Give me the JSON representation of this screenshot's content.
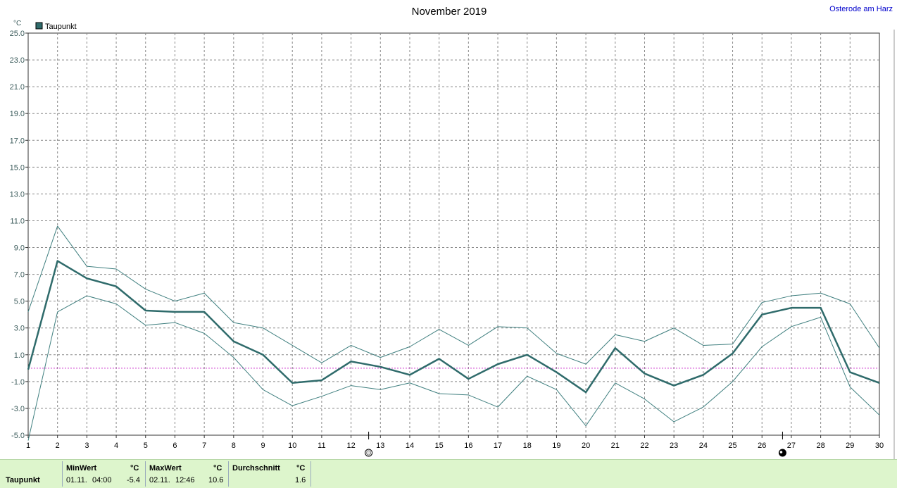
{
  "location": "Osterode am Harz",
  "chart_data": {
    "type": "line",
    "title": "November 2019",
    "ylabel": "°C",
    "ylim": [
      -5,
      25
    ],
    "yticks": [
      "25.0",
      "23.0",
      "21.0",
      "19.0",
      "17.0",
      "15.0",
      "13.0",
      "11.0",
      "9.0",
      "7.0",
      "5.0",
      "3.0",
      "1.0",
      "-1.0",
      "-3.0",
      "-5.0"
    ],
    "ytick_values": [
      25,
      23,
      21,
      19,
      17,
      15,
      13,
      11,
      9,
      7,
      5,
      3,
      1,
      -1,
      -3,
      -5
    ],
    "x": [
      1,
      2,
      3,
      4,
      5,
      6,
      7,
      8,
      9,
      10,
      11,
      12,
      13,
      14,
      15,
      16,
      17,
      18,
      19,
      20,
      21,
      22,
      23,
      24,
      25,
      26,
      27,
      28,
      29,
      30
    ],
    "xlim": [
      1,
      30
    ],
    "grid": true,
    "legend": {
      "position": "top-left",
      "entries": [
        "Taupunkt"
      ]
    },
    "series": [
      {
        "name": "Taupunkt",
        "role": "mean",
        "values": [
          -0.1,
          8.0,
          6.7,
          6.1,
          4.3,
          4.2,
          4.2,
          2.0,
          1.0,
          -1.1,
          -0.9,
          0.5,
          0.1,
          -0.5,
          0.7,
          -0.8,
          0.3,
          1.0,
          -0.3,
          -1.8,
          1.5,
          -0.4,
          -1.3,
          -0.5,
          1.1,
          4.0,
          4.5,
          4.5,
          -0.3,
          -1.1
        ]
      },
      {
        "role": "max",
        "values": [
          4.2,
          10.6,
          7.6,
          7.4,
          5.9,
          5.0,
          5.6,
          3.4,
          3.0,
          1.7,
          0.4,
          1.7,
          0.8,
          1.6,
          2.9,
          1.7,
          3.1,
          3.0,
          1.1,
          0.3,
          2.5,
          2.0,
          3.0,
          1.7,
          1.8,
          4.9,
          5.4,
          5.6,
          4.8,
          1.5
        ]
      },
      {
        "role": "min",
        "values": [
          -5.4,
          4.2,
          5.4,
          4.8,
          3.2,
          3.4,
          2.6,
          0.8,
          -1.6,
          -2.8,
          -2.1,
          -1.3,
          -1.6,
          -1.1,
          -1.9,
          -2.0,
          -2.9,
          -0.6,
          -1.6,
          -4.3,
          -1.1,
          -2.3,
          -4.0,
          -2.9,
          -1.0,
          1.6,
          3.1,
          3.8,
          -1.4,
          -3.5
        ]
      }
    ],
    "reference_line": {
      "y": 0,
      "color": "#cc33cc"
    },
    "moon_markers": [
      {
        "x": 12.6,
        "phase": "full",
        "icon": "full-moon-icon"
      },
      {
        "x": 26.7,
        "phase": "new",
        "icon": "new-moon-icon"
      }
    ],
    "colors": {
      "mean": "#2f6b6b",
      "range": "#3f7f7f",
      "grid": "#888888"
    }
  },
  "footer": {
    "row_label": "Taupunkt",
    "min": {
      "header": "MinWert",
      "unit": "°C",
      "date": "01.11.",
      "time": "04:00",
      "value": "-5.4"
    },
    "max": {
      "header": "MaxWert",
      "unit": "°C",
      "date": "02.11.",
      "time": "12:46",
      "value": "10.6"
    },
    "avg": {
      "header": "Durchschnitt",
      "unit": "°C",
      "value": "1.6"
    }
  }
}
